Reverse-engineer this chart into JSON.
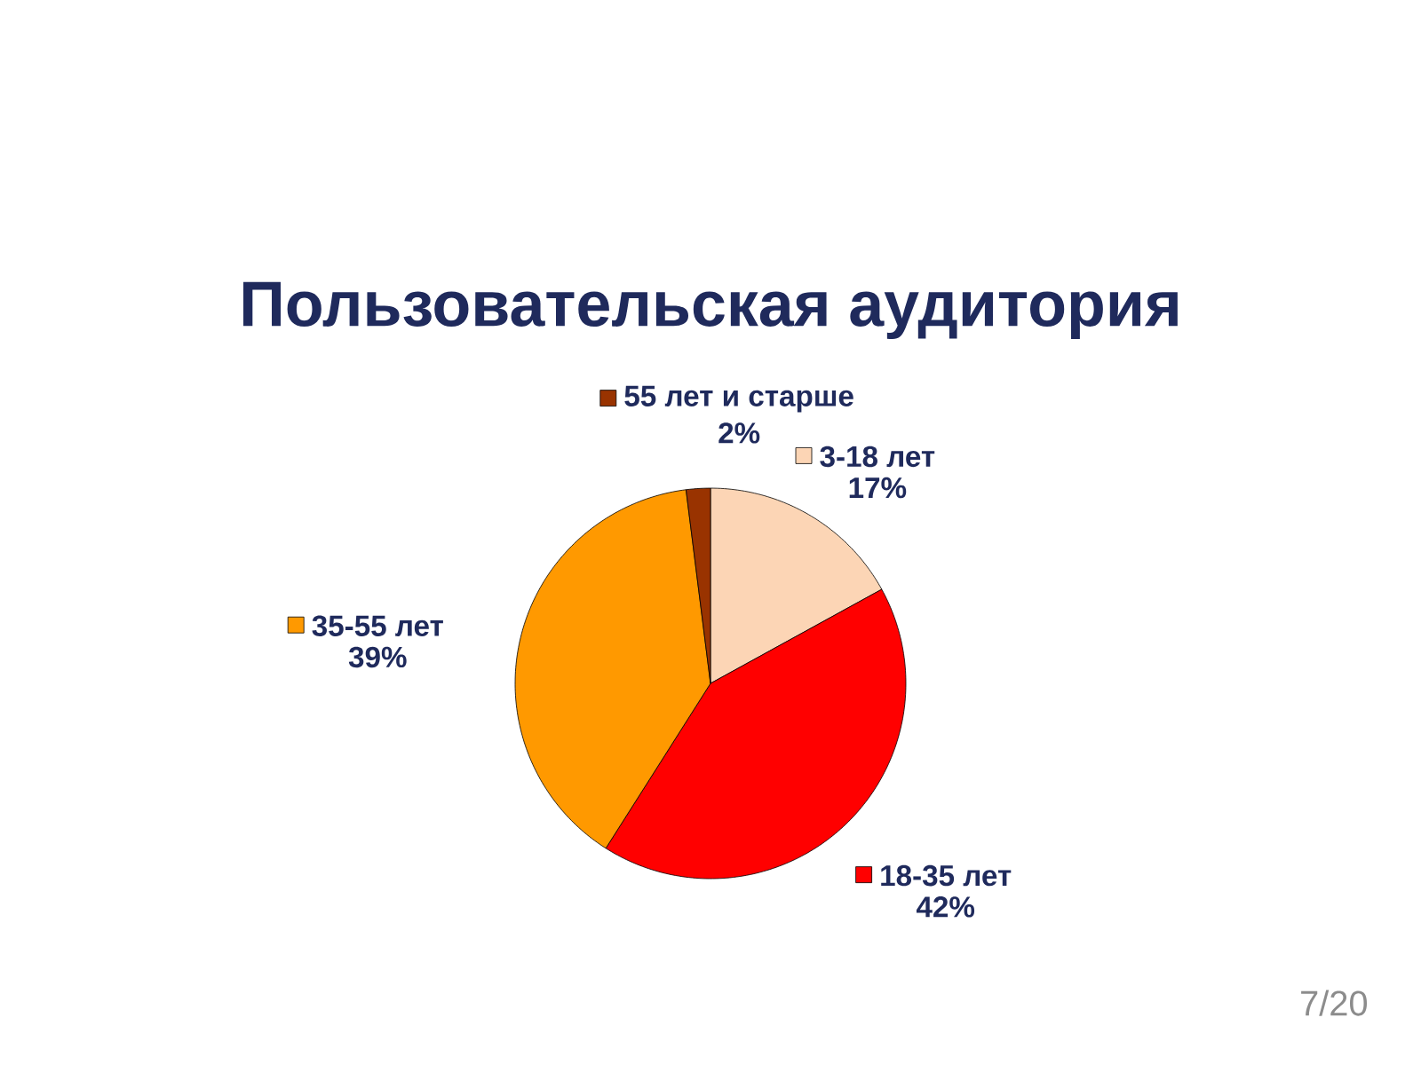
{
  "chart_data": {
    "type": "pie",
    "title": "Пользовательская аудитория",
    "categories": [
      "3-18 лет",
      "18-35 лет",
      "35-55 лет",
      "55 лет и старше"
    ],
    "values": [
      17,
      42,
      39,
      2
    ],
    "value_labels": [
      "17%",
      "42%",
      "39%",
      "2%"
    ],
    "colors": [
      "#fcd5b5",
      "#ff0000",
      "#ff9900",
      "#993300"
    ],
    "legend": "left",
    "annotations": [
      "7/20"
    ]
  }
}
